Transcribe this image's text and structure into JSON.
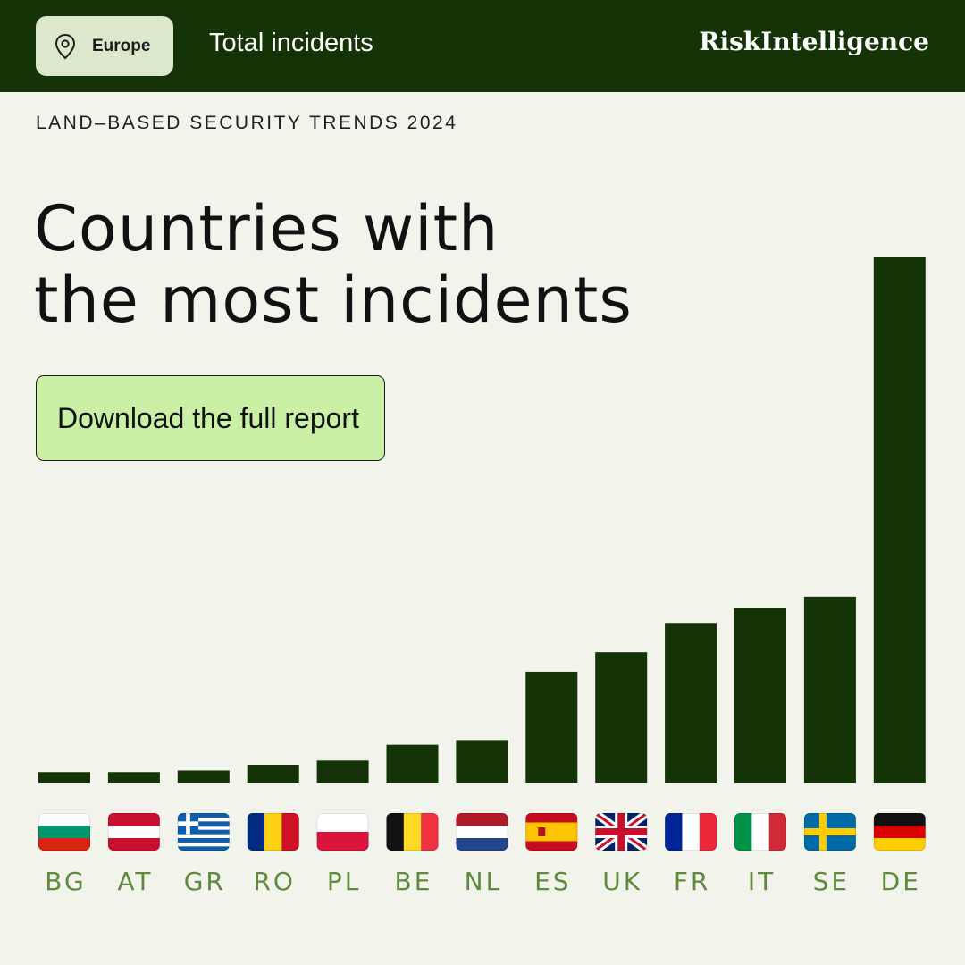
{
  "header": {
    "region": "Europe",
    "region_icon": "map-pin-icon",
    "metric": "Total incidents",
    "brand": "RiskIntelligence"
  },
  "subtitle": "LAND–BASED SECURITY TRENDS 2024",
  "headline": {
    "line1": "Countries with",
    "line2": "the most incidents"
  },
  "cta_label": "Download the full report",
  "colors": {
    "header_bg": "#143307",
    "background": "#f2f3ea",
    "bar": "#143307",
    "cta_bg": "#caf0a6",
    "label": "#5d8a3f"
  },
  "chart_data": {
    "type": "bar",
    "categories": [
      "BG",
      "AT",
      "GR",
      "RO",
      "PL",
      "BE",
      "NL",
      "ES",
      "UK",
      "FR",
      "IT",
      "SE",
      "DE"
    ],
    "values": [
      2,
      2,
      2.3,
      3.4,
      4.2,
      7.2,
      8.1,
      21.1,
      24.8,
      30.4,
      33.3,
      35.4,
      100
    ],
    "flags": [
      "flag-bulgaria-icon",
      "flag-austria-icon",
      "flag-greece-icon",
      "flag-romania-icon",
      "flag-poland-icon",
      "flag-belgium-icon",
      "flag-netherlands-icon",
      "flag-spain-icon",
      "flag-uk-icon",
      "flag-france-icon",
      "flag-italy-icon",
      "flag-sweden-icon",
      "flag-germany-icon"
    ],
    "ylim": [
      0,
      100
    ],
    "grid": false,
    "axis_labels_shown": false
  }
}
